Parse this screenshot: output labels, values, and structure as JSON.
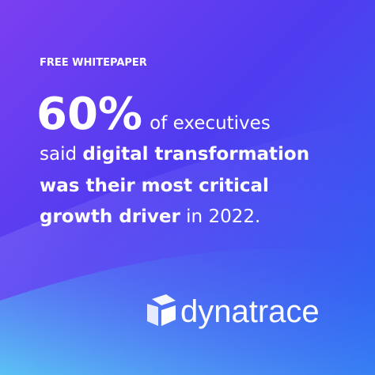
{
  "header": {
    "label": "FREE WHITEPAPER"
  },
  "headline": {
    "stat": "60%",
    "line1_rest": "of executives",
    "line2_plain": "said",
    "line2_bold": "digital transformation",
    "line3_bold": "was their most critical",
    "line4_bold": "growth driver",
    "line4_plain": "in 2022."
  },
  "logo": {
    "wordmark": "dynatrace"
  }
}
